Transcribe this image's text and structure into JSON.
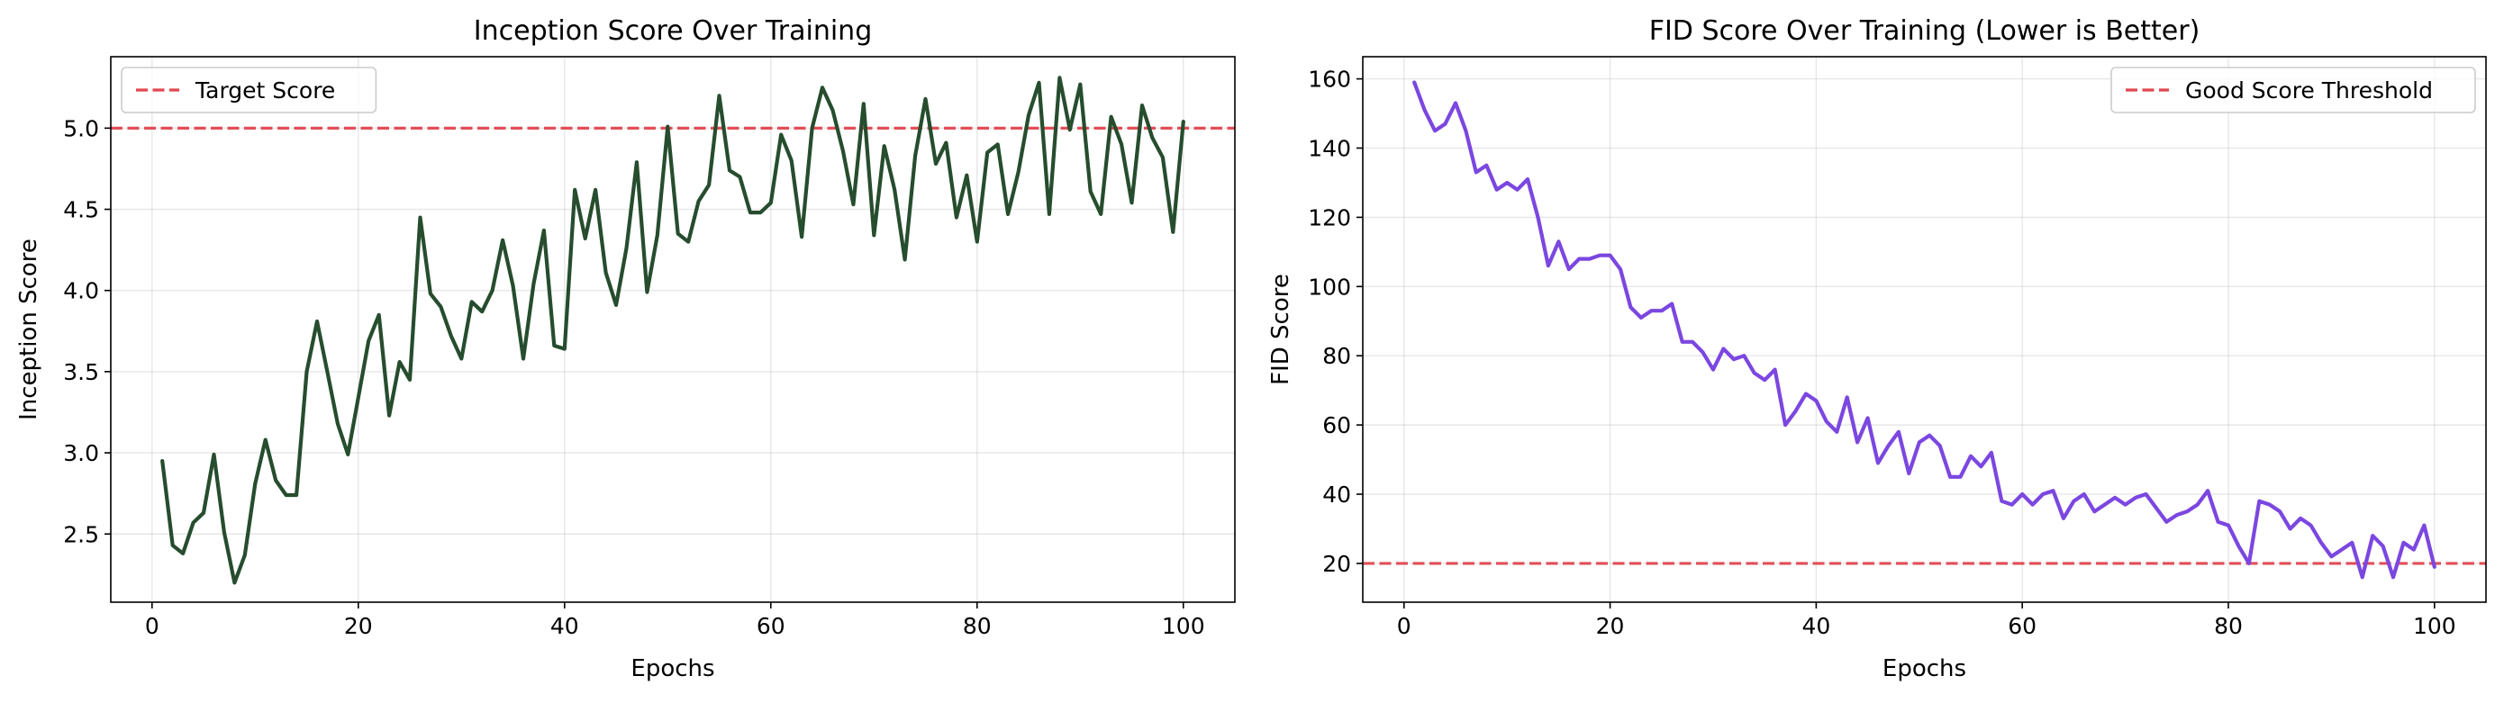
{
  "chart_data": [
    {
      "type": "line",
      "title": "Inception Score Over Training",
      "xlabel": "Epochs",
      "ylabel": "Inception Score",
      "xlim": [
        -4,
        105
      ],
      "ylim": [
        2.08,
        5.44
      ],
      "xticks": [
        0,
        20,
        40,
        60,
        80,
        100
      ],
      "yticks": [
        2.5,
        3.0,
        3.5,
        4.0,
        4.5,
        5.0
      ],
      "grid": true,
      "legend_position": "top-left",
      "reference_line": {
        "label": "Target Score",
        "y": 5.0,
        "color": "#e2464f",
        "style": "dashed"
      },
      "series": [
        {
          "color": "#264d2e",
          "x": [
            1,
            2,
            3,
            4,
            5,
            6,
            7,
            8,
            9,
            10,
            11,
            12,
            13,
            14,
            15,
            16,
            17,
            18,
            19,
            20,
            21,
            22,
            23,
            24,
            25,
            26,
            27,
            28,
            29,
            30,
            31,
            32,
            33,
            34,
            35,
            36,
            37,
            38,
            39,
            40,
            41,
            42,
            43,
            44,
            45,
            46,
            47,
            48,
            49,
            50,
            51,
            52,
            53,
            54,
            55,
            56,
            57,
            58,
            59,
            60,
            61,
            62,
            63,
            64,
            65,
            66,
            67,
            68,
            69,
            70,
            71,
            72,
            73,
            74,
            75,
            76,
            77,
            78,
            79,
            80,
            81,
            82,
            83,
            84,
            85,
            86,
            87,
            88,
            89,
            90,
            91,
            92,
            93,
            94,
            95,
            96,
            97,
            98,
            99,
            100
          ],
          "y": [
            2.95,
            2.43,
            2.38,
            2.57,
            2.63,
            2.99,
            2.51,
            2.2,
            2.37,
            2.81,
            3.08,
            2.83,
            2.74,
            2.74,
            3.5,
            3.81,
            3.5,
            3.18,
            2.99,
            3.34,
            3.69,
            3.85,
            3.23,
            3.56,
            3.45,
            4.45,
            3.98,
            3.9,
            3.72,
            3.58,
            3.93,
            3.87,
            4.0,
            4.31,
            4.03,
            3.58,
            4.04,
            4.37,
            3.66,
            3.64,
            4.62,
            4.32,
            4.62,
            4.11,
            3.91,
            4.26,
            4.79,
            3.99,
            4.34,
            5.01,
            4.35,
            4.3,
            4.55,
            4.65,
            5.2,
            4.74,
            4.7,
            4.48,
            4.48,
            4.54,
            4.96,
            4.8,
            4.33,
            5.0,
            5.25,
            5.11,
            4.86,
            4.53,
            5.15,
            4.34,
            4.89,
            4.62,
            4.19,
            4.83,
            5.18,
            4.78,
            4.91,
            4.45,
            4.71,
            4.3,
            4.85,
            4.9,
            4.47,
            4.73,
            5.08,
            5.28,
            4.47,
            5.31,
            4.99,
            5.27,
            4.61,
            4.47,
            5.07,
            4.9,
            4.54,
            5.14,
            4.94,
            4.82,
            4.36,
            5.04
          ]
        }
      ]
    },
    {
      "type": "line",
      "title": "FID Score Over Training (Lower is Better)",
      "xlabel": "Epochs",
      "ylabel": "FID Score",
      "xlim": [
        -4,
        105
      ],
      "ylim": [
        8.8,
        166.4
      ],
      "xticks": [
        0,
        20,
        40,
        60,
        80,
        100
      ],
      "yticks": [
        20,
        40,
        60,
        80,
        100,
        120,
        140,
        160
      ],
      "grid": true,
      "legend_position": "top-right",
      "reference_line": {
        "label": "Good Score Threshold",
        "y": 20,
        "color": "#e2464f",
        "style": "dashed"
      },
      "series": [
        {
          "color": "#7b47e0",
          "x": [
            1,
            2,
            3,
            4,
            5,
            6,
            7,
            8,
            9,
            10,
            11,
            12,
            13,
            14,
            15,
            16,
            17,
            18,
            19,
            20,
            21,
            22,
            23,
            24,
            25,
            26,
            27,
            28,
            29,
            30,
            31,
            32,
            33,
            34,
            35,
            36,
            37,
            38,
            39,
            40,
            41,
            42,
            43,
            44,
            45,
            46,
            47,
            48,
            49,
            50,
            51,
            52,
            53,
            54,
            55,
            56,
            57,
            58,
            59,
            60,
            61,
            62,
            63,
            64,
            65,
            66,
            67,
            68,
            69,
            70,
            71,
            72,
            73,
            74,
            75,
            76,
            77,
            78,
            79,
            80,
            81,
            82,
            83,
            84,
            85,
            86,
            87,
            88,
            89,
            90,
            91,
            92,
            93,
            94,
            95,
            96,
            97,
            98,
            99,
            100
          ],
          "y": [
            159,
            151,
            145,
            147,
            153,
            145,
            133,
            135,
            128,
            130,
            128,
            131,
            120,
            106,
            113,
            105,
            108,
            108,
            109,
            109,
            105,
            94,
            91,
            93,
            93,
            95,
            84,
            84,
            81,
            76,
            82,
            79,
            80,
            75,
            73,
            76,
            60,
            64,
            69,
            67,
            61,
            58,
            68,
            55,
            62,
            49,
            54,
            58,
            46,
            55,
            57,
            54,
            45,
            45,
            51,
            48,
            52,
            38,
            37,
            40,
            37,
            40,
            41,
            33,
            38,
            40,
            35,
            37,
            39,
            37,
            39,
            40,
            36,
            32,
            34,
            35,
            37,
            41,
            32,
            31,
            25,
            20,
            38,
            37,
            35,
            30,
            33,
            31,
            26,
            22,
            24,
            26,
            16,
            28,
            25,
            16,
            26,
            24,
            31,
            19
          ]
        }
      ]
    }
  ]
}
